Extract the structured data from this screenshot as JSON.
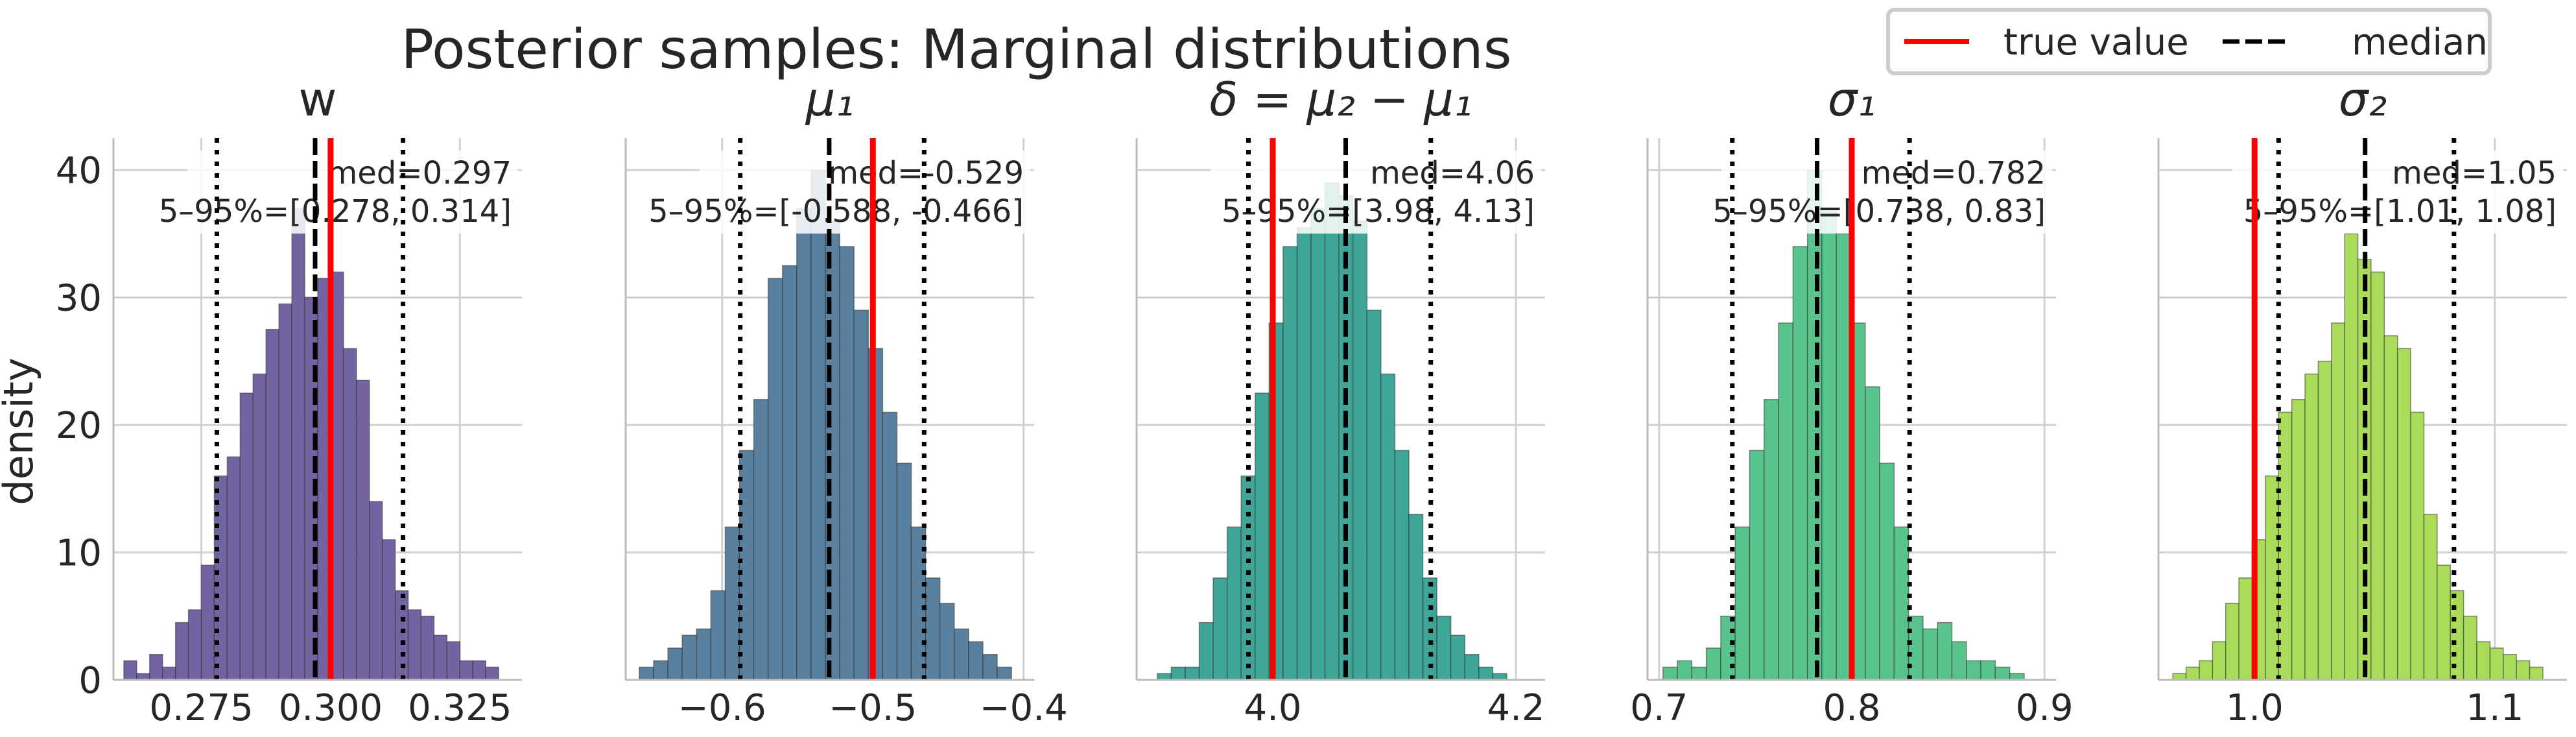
{
  "suptitle": "Posterior samples: Marginal distributions",
  "ylabel": "density",
  "legend": [
    {
      "label": "true value",
      "color": "#ff0000",
      "style": "solid"
    },
    {
      "label": "median",
      "color": "#000000",
      "style": "dashed"
    }
  ],
  "chart_data": [
    {
      "type": "histogram",
      "title": "w",
      "color": "#7463a3",
      "xlim": [
        0.258,
        0.337
      ],
      "ylim": [
        0,
        42.5
      ],
      "xticks": [
        0.275,
        0.3,
        0.325
      ],
      "xtick_labels": [
        "0.275",
        "0.300",
        "0.325"
      ],
      "yticks": [
        0,
        10,
        20,
        30,
        40
      ],
      "ytick_labels": [
        "0",
        "10",
        "20",
        "30",
        "40"
      ],
      "bin_start": 0.26,
      "bin_width": 0.0025,
      "values": [
        1.5,
        0.5,
        2,
        1,
        4.5,
        5.5,
        9,
        16,
        17.5,
        22.5,
        24,
        27.5,
        29.5,
        37,
        30,
        31.5,
        32,
        26,
        23.5,
        14,
        11,
        7,
        5.5,
        5,
        3.5,
        3,
        1.5,
        1.5,
        1
      ],
      "true_value": 0.3,
      "median": 0.297,
      "q05": 0.278,
      "q95": 0.314,
      "annotation": {
        "med": "med=0.297",
        "range": "5–95%=[0.278, 0.314]"
      }
    },
    {
      "type": "histogram",
      "title": "μ₁",
      "color": "#5a809f",
      "xlim": [
        -0.664,
        -0.393
      ],
      "ylim": [
        0,
        42.5
      ],
      "xticks": [
        -0.6,
        -0.5,
        -0.4
      ],
      "xtick_labels": [
        "−0.6",
        "−0.5",
        "−0.4"
      ],
      "yticks": [
        0,
        10,
        20,
        30,
        40
      ],
      "bin_start": -0.655,
      "bin_width": 0.0095,
      "values": [
        1,
        1.5,
        2.5,
        3.5,
        4,
        7,
        12,
        18,
        22,
        31.5,
        32.5,
        37,
        40,
        36,
        34,
        29,
        26,
        21,
        17,
        12,
        8,
        6,
        4,
        3,
        2,
        1
      ],
      "true_value": -0.5,
      "median": -0.529,
      "q05": -0.588,
      "q95": -0.466,
      "annotation": {
        "med": "med=-0.529",
        "range": "5–95%=[-0.588, -0.466]"
      }
    },
    {
      "type": "histogram",
      "title": "δ = μ₂ − μ₁",
      "color": "#3fa596",
      "xlim": [
        3.888,
        4.224
      ],
      "ylim": [
        0,
        42.5
      ],
      "xticks": [
        4.0,
        4.2
      ],
      "xtick_labels": [
        "4.0",
        "4.2"
      ],
      "yticks": [
        0,
        10,
        20,
        30,
        40
      ],
      "bin_start": 3.905,
      "bin_width": 0.0115,
      "values": [
        0.5,
        1,
        1,
        4.5,
        8,
        12,
        16,
        22.5,
        28,
        34,
        35.5,
        37,
        39,
        38,
        36,
        29,
        24,
        18,
        13,
        8,
        5,
        3.5,
        2,
        1,
        0.5
      ],
      "true_value": 4.0,
      "median": 4.06,
      "q05": 3.98,
      "q95": 4.13,
      "annotation": {
        "med": "med=4.06",
        "range": "5–95%=[3.98, 4.13]"
      }
    },
    {
      "type": "histogram",
      "title": "σ₁",
      "color": "#58c48c",
      "xlim": [
        0.694,
        0.906
      ],
      "ylim": [
        0,
        42.5
      ],
      "xticks": [
        0.7,
        0.8,
        0.9
      ],
      "xtick_labels": [
        "0.7",
        "0.8",
        "0.9"
      ],
      "yticks": [
        0,
        10,
        20,
        30,
        40
      ],
      "bin_start": 0.702,
      "bin_width": 0.0075,
      "values": [
        1,
        1.5,
        1,
        2.5,
        5,
        12,
        18,
        22,
        28,
        34,
        40,
        37,
        35,
        28,
        23,
        17,
        12,
        5,
        4,
        4.5,
        3,
        1.5,
        1.5,
        1,
        0.5
      ],
      "true_value": 0.8,
      "median": 0.782,
      "q05": 0.738,
      "q95": 0.83,
      "annotation": {
        "med": "med=0.782",
        "range": "5–95%=[0.738, 0.83]"
      }
    },
    {
      "type": "histogram",
      "title": "σ₂",
      "color": "#aadc5a",
      "xlim": [
        0.96,
        1.13
      ],
      "ylim": [
        0,
        42.5
      ],
      "xticks": [
        1.0,
        1.1
      ],
      "xtick_labels": [
        "1.0",
        "1.1"
      ],
      "yticks": [
        0,
        10,
        20,
        30,
        40
      ],
      "bin_start": 0.966,
      "bin_width": 0.0055,
      "values": [
        0.5,
        1,
        1.5,
        3,
        6,
        8,
        11,
        16,
        21,
        22,
        24,
        25,
        28,
        35,
        33,
        32,
        27,
        26,
        21,
        13,
        9,
        7,
        5,
        3,
        2.5,
        2,
        1.5,
        1
      ],
      "true_value": 1.0,
      "median": 1.046,
      "q05": 1.01,
      "q95": 1.083,
      "annotation": {
        "med": "med=1.05",
        "range": "5–95%=[1.01, 1.08]"
      }
    }
  ]
}
